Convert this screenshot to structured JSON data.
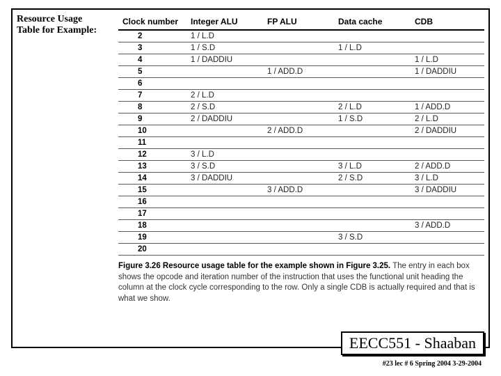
{
  "sidelabel": {
    "line1": "Resource Usage",
    "line2": "Table for Example:"
  },
  "table": {
    "headers": [
      "Clock number",
      "Integer ALU",
      "FP ALU",
      "Data cache",
      "CDB"
    ],
    "rows": [
      {
        "clock": "2",
        "ialu": "1 / L.D",
        "fpalu": "",
        "dcache": "",
        "cdb": ""
      },
      {
        "clock": "3",
        "ialu": "1 / S.D",
        "fpalu": "",
        "dcache": "1 / L.D",
        "cdb": ""
      },
      {
        "clock": "4",
        "ialu": "1 / DADDIU",
        "fpalu": "",
        "dcache": "",
        "cdb": "1 / L.D"
      },
      {
        "clock": "5",
        "ialu": "",
        "fpalu": "1 / ADD.D",
        "dcache": "",
        "cdb": "1 / DADDIU"
      },
      {
        "clock": "6",
        "ialu": "",
        "fpalu": "",
        "dcache": "",
        "cdb": ""
      },
      {
        "clock": "7",
        "ialu": "2 / L.D",
        "fpalu": "",
        "dcache": "",
        "cdb": ""
      },
      {
        "clock": "8",
        "ialu": "2 / S.D",
        "fpalu": "",
        "dcache": "2 / L.D",
        "cdb": "1 / ADD.D"
      },
      {
        "clock": "9",
        "ialu": "2 / DADDIU",
        "fpalu": "",
        "dcache": "1 / S.D",
        "cdb": "2 / L.D"
      },
      {
        "clock": "10",
        "ialu": "",
        "fpalu": "2 / ADD.D",
        "dcache": "",
        "cdb": "2 / DADDIU"
      },
      {
        "clock": "11",
        "ialu": "",
        "fpalu": "",
        "dcache": "",
        "cdb": ""
      },
      {
        "clock": "12",
        "ialu": "3 / L.D",
        "fpalu": "",
        "dcache": "",
        "cdb": ""
      },
      {
        "clock": "13",
        "ialu": "3 / S.D",
        "fpalu": "",
        "dcache": "3 / L.D",
        "cdb": "2 / ADD.D"
      },
      {
        "clock": "14",
        "ialu": "3 / DADDIU",
        "fpalu": "",
        "dcache": "2 / S.D",
        "cdb": "3 / L.D"
      },
      {
        "clock": "15",
        "ialu": "",
        "fpalu": "3 / ADD.D",
        "dcache": "",
        "cdb": "3 / DADDIU"
      },
      {
        "clock": "16",
        "ialu": "",
        "fpalu": "",
        "dcache": "",
        "cdb": ""
      },
      {
        "clock": "17",
        "ialu": "",
        "fpalu": "",
        "dcache": "",
        "cdb": ""
      },
      {
        "clock": "18",
        "ialu": "",
        "fpalu": "",
        "dcache": "",
        "cdb": "3 / ADD.D"
      },
      {
        "clock": "19",
        "ialu": "",
        "fpalu": "",
        "dcache": "3 / S.D",
        "cdb": ""
      },
      {
        "clock": "20",
        "ialu": "",
        "fpalu": "",
        "dcache": "",
        "cdb": ""
      }
    ]
  },
  "caption": {
    "lead": "Figure 3.26   Resource usage table for the example shown in Figure 3.25.",
    "rest": " The entry in each box shows the opcode and iteration number of the instruction that uses the functional unit heading the column at the clock cycle corresponding to the row. Only a single CDB is actually required and that is what we show."
  },
  "footer": {
    "course": "EECC551 - Shaaban",
    "meta": "#23   lec # 6    Spring 2004  3-29-2004"
  }
}
